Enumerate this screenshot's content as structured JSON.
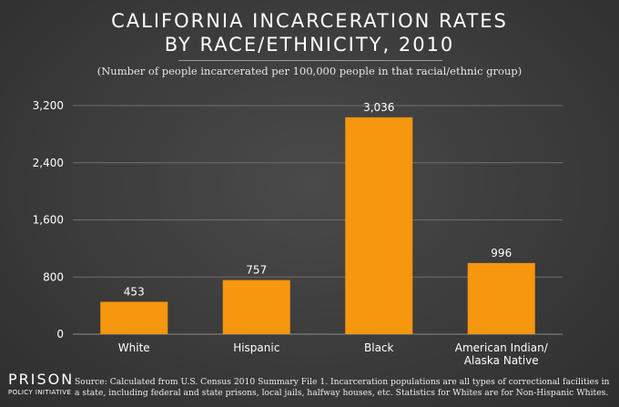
{
  "title_line1": "CALIFORNIA INCARCERATION RATES",
  "title_line2": "BY RACE/ETHNICITY, 2010",
  "subtitle": "(Number of people incarcerated per 100,000 people in that racial/ethnic group)",
  "brand_name": "PRISON",
  "brand_sub": "POLICY INITIATIVE",
  "source": "Source: Calculated from U.S. Census 2010 Summary File 1. Incarceration populations are all types of correctional facilities in a state, including federal and state prisons, local jails, halfway houses, etc. Statistics for Whites are for Non-Hispanic Whites.",
  "colors": {
    "bar": "#f7960f",
    "grid": "#6e6e6e",
    "text": "#ffffff"
  },
  "chart_data": {
    "type": "bar",
    "title": "CALIFORNIA INCARCERATION RATES BY RACE/ETHNICITY, 2010",
    "subtitle": "(Number of people incarcerated per 100,000 people in that racial/ethnic group)",
    "categories": [
      "White",
      "Hispanic",
      "Black",
      "American Indian/ Alaska Native"
    ],
    "category_lines": [
      [
        "White"
      ],
      [
        "Hispanic"
      ],
      [
        "Black"
      ],
      [
        "American Indian/",
        "Alaska Native"
      ]
    ],
    "values": [
      453,
      757,
      3036,
      996
    ],
    "value_labels": [
      "453",
      "757",
      "3,036",
      "996"
    ],
    "yticks": [
      0,
      800,
      1600,
      2400,
      3200
    ],
    "ytick_labels": [
      "0",
      "800",
      "1,600",
      "2,400",
      "3,200"
    ],
    "ylim": [
      0,
      3200
    ],
    "grid": true,
    "xlabel": "",
    "ylabel": ""
  }
}
